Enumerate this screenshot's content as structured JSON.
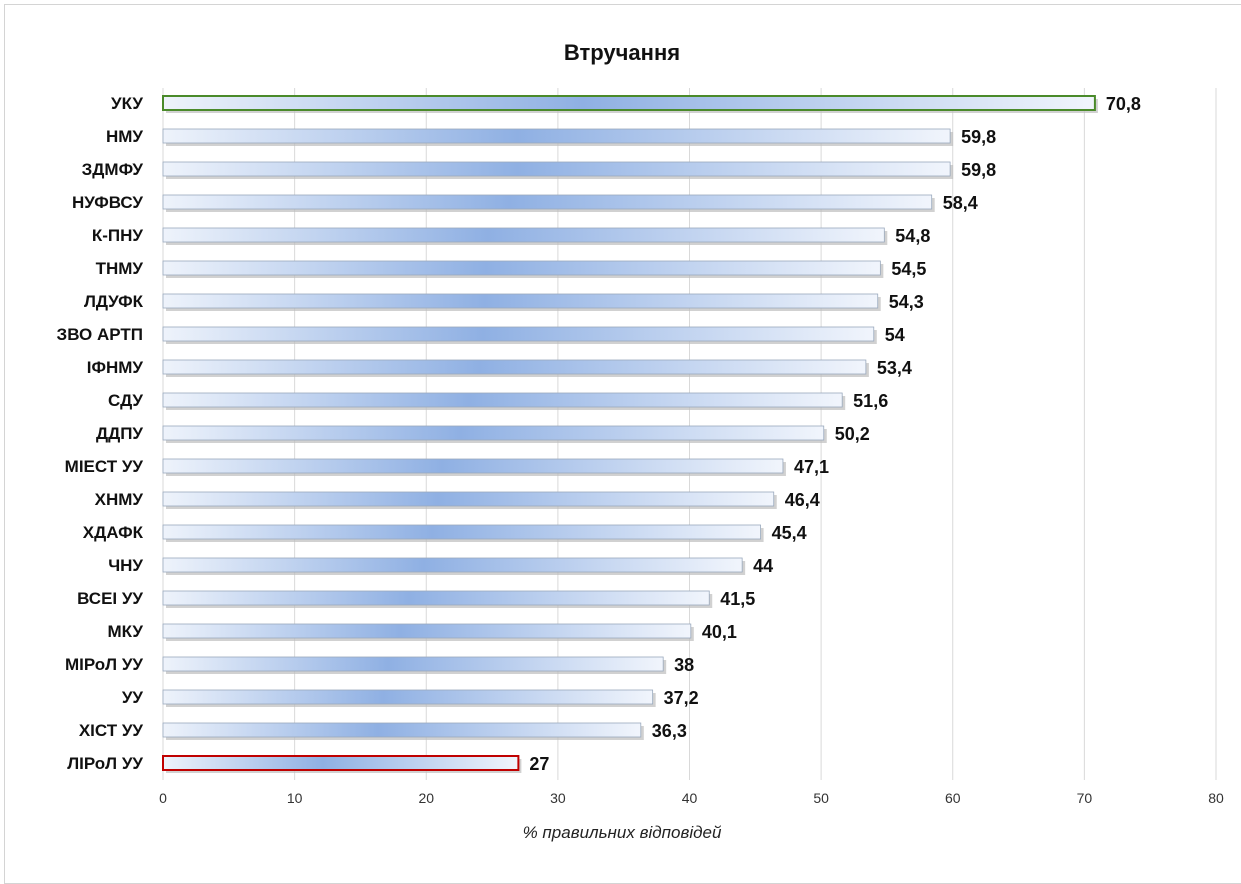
{
  "chart_data": {
    "type": "bar",
    "orientation": "horizontal",
    "title": "Втручання",
    "xlabel": "% правильних відповідей",
    "categories": [
      "УКУ",
      "НМУ",
      "ЗДМФУ",
      "НУФВСУ",
      "К-ПНУ",
      "ТНМУ",
      "ЛДУФК",
      "ЗВО АРТП",
      "ІФНМУ",
      "СДУ",
      "ДДПУ",
      "МІЕСТ УУ",
      "ХНМУ",
      "ХДАФК",
      "ЧНУ",
      "ВСЕІ УУ",
      "МКУ",
      "МІРоЛ  УУ",
      "УУ",
      "ХІСТ УУ",
      "ЛІРоЛ УУ"
    ],
    "values": [
      70.8,
      59.8,
      59.8,
      58.4,
      54.8,
      54.5,
      54.3,
      54,
      53.4,
      51.6,
      50.2,
      47.1,
      46.4,
      45.4,
      44,
      41.5,
      40.1,
      38,
      37.2,
      36.3,
      27
    ],
    "value_labels": [
      "70,8",
      "59,8",
      "59,8",
      "58,4",
      "54,8",
      "54,5",
      "54,3",
      "54",
      "53,4",
      "51,6",
      "50,2",
      "47,1",
      "46,4",
      "45,4",
      "44",
      "41,5",
      "40,1",
      "38",
      "37,2",
      "36,3",
      "27"
    ],
    "xlim": [
      0,
      80
    ],
    "xticks": [
      0,
      10,
      20,
      30,
      40,
      50,
      60,
      70,
      80
    ],
    "grid": true,
    "legend": "none",
    "highlight": {
      "УКУ": "#4a8a2a",
      "ЛІРоЛ УУ": "#c00000"
    },
    "colors": {
      "bar_light": "#eef3fb",
      "bar_mid": "#8fb0e3",
      "bar_border": "#9aa9bd",
      "shadow": "#bdbdbd"
    }
  }
}
